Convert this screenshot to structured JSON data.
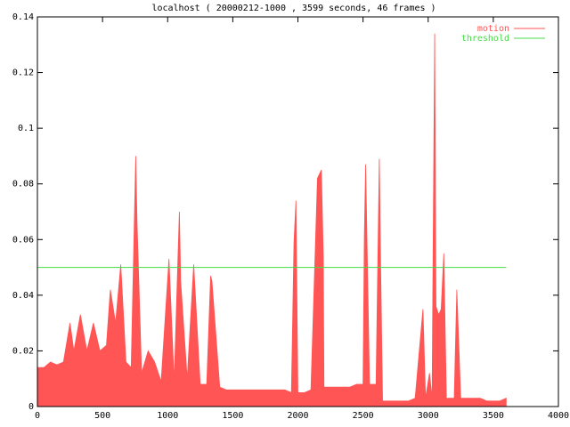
{
  "chart_data": {
    "type": "area",
    "title": "localhost ( 20000212-1000 , 3599 seconds, 46 frames )",
    "xlim": [
      0,
      4000
    ],
    "xticks": [
      0,
      500,
      1000,
      1500,
      2000,
      2500,
      3000,
      3500,
      4000
    ],
    "ylim": [
      0,
      0.14
    ],
    "yticks": [
      0,
      0.02,
      0.04,
      0.06,
      0.08,
      0.1,
      0.12,
      0.14
    ],
    "legend": "upper right",
    "series": [
      {
        "name": "motion",
        "color": "#ff5555",
        "kind": "area",
        "x": [
          0,
          50,
          100,
          150,
          200,
          250,
          280,
          330,
          380,
          430,
          480,
          530,
          560,
          600,
          640,
          680,
          720,
          755,
          765,
          800,
          850,
          900,
          950,
          1010,
          1050,
          1090,
          1100,
          1150,
          1200,
          1250,
          1300,
          1330,
          1340,
          1400,
          1450,
          1500,
          1550,
          1600,
          1650,
          1700,
          1750,
          1800,
          1850,
          1900,
          1950,
          1970,
          1985,
          2000,
          2050,
          2100,
          2150,
          2180,
          2195,
          2200,
          2250,
          2300,
          2350,
          2400,
          2450,
          2500,
          2510,
          2520,
          2550,
          2600,
          2625,
          2635,
          2650,
          2700,
          2750,
          2800,
          2850,
          2900,
          2960,
          2980,
          3010,
          3030,
          3050,
          3060,
          3080,
          3100,
          3120,
          3140,
          3200,
          3220,
          3250,
          3300,
          3350,
          3400,
          3450,
          3500,
          3550,
          3599
        ],
        "values": [
          0.014,
          0.014,
          0.016,
          0.015,
          0.016,
          0.03,
          0.02,
          0.033,
          0.02,
          0.03,
          0.02,
          0.022,
          0.042,
          0.03,
          0.051,
          0.016,
          0.014,
          0.09,
          0.066,
          0.012,
          0.02,
          0.016,
          0.009,
          0.053,
          0.009,
          0.07,
          0.045,
          0.01,
          0.051,
          0.008,
          0.008,
          0.047,
          0.045,
          0.007,
          0.006,
          0.006,
          0.006,
          0.006,
          0.006,
          0.006,
          0.006,
          0.006,
          0.006,
          0.006,
          0.005,
          0.059,
          0.074,
          0.005,
          0.005,
          0.006,
          0.082,
          0.085,
          0.054,
          0.007,
          0.007,
          0.007,
          0.007,
          0.007,
          0.008,
          0.008,
          0.061,
          0.087,
          0.008,
          0.008,
          0.089,
          0.051,
          0.002,
          0.002,
          0.002,
          0.002,
          0.002,
          0.003,
          0.035,
          0.003,
          0.012,
          0.003,
          0.134,
          0.036,
          0.033,
          0.035,
          0.055,
          0.003,
          0.003,
          0.042,
          0.003,
          0.003,
          0.003,
          0.003,
          0.002,
          0.002,
          0.002,
          0.003
        ]
      },
      {
        "name": "threshold",
        "color": "#44dd44",
        "kind": "line",
        "x": [
          0,
          3599
        ],
        "values": [
          0.05,
          0.05
        ]
      }
    ]
  }
}
